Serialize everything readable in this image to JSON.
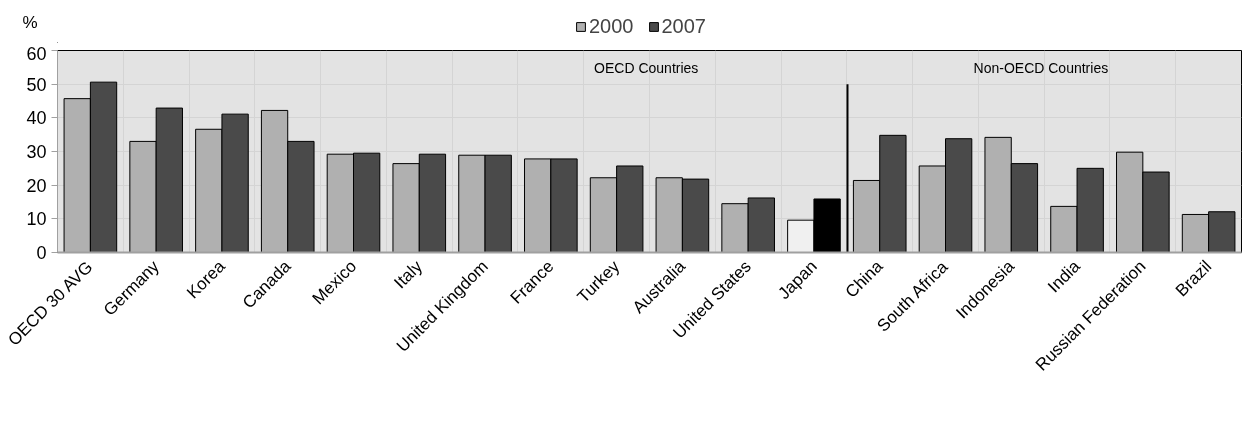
{
  "chart_data": {
    "type": "bar",
    "ylabel": "%",
    "categories": [
      "OECD 30 AVG",
      "Germany",
      "Korea",
      "Canada",
      "Mexico",
      "Italy",
      "United Kingdom",
      "France",
      "Turkey",
      "Australia",
      "United States",
      "Japan",
      "China",
      "South Africa",
      "Indonesia",
      "India",
      "Russian Federation",
      "Brazil"
    ],
    "series": [
      {
        "name": "2000",
        "color": "#b0b0b0",
        "colors": [
          "#b0b0b0",
          "#b0b0b0",
          "#b0b0b0",
          "#b0b0b0",
          "#b0b0b0",
          "#b0b0b0",
          "#b0b0b0",
          "#b0b0b0",
          "#b0b0b0",
          "#b0b0b0",
          "#b0b0b0",
          "#f0f0f0",
          "#b0b0b0",
          "#b0b0b0",
          "#b0b0b0",
          "#b0b0b0",
          "#b0b0b0",
          "#b0b0b0"
        ],
        "values": [
          45.7,
          33.0,
          36.6,
          42.2,
          29.2,
          26.4,
          28.9,
          27.8,
          22.2,
          22.2,
          14.5,
          9.6,
          21.4,
          25.7,
          34.2,
          13.7,
          29.8,
          11.3
        ]
      },
      {
        "name": "2007",
        "color": "#4a4a4a",
        "colors": [
          "#4a4a4a",
          "#4a4a4a",
          "#4a4a4a",
          "#4a4a4a",
          "#4a4a4a",
          "#4a4a4a",
          "#4a4a4a",
          "#4a4a4a",
          "#4a4a4a",
          "#4a4a4a",
          "#4a4a4a",
          "#000000",
          "#4a4a4a",
          "#4a4a4a",
          "#4a4a4a",
          "#4a4a4a",
          "#4a4a4a",
          "#4a4a4a"
        ],
        "values": [
          50.6,
          42.9,
          41.1,
          33.0,
          29.5,
          29.2,
          28.9,
          27.8,
          25.7,
          21.8,
          16.2,
          15.9,
          34.8,
          33.8,
          26.4,
          25.0,
          23.9,
          12.1
        ]
      }
    ],
    "ylim": [
      0,
      60
    ],
    "yticks": [
      0,
      10,
      20,
      30,
      40,
      50,
      60
    ],
    "grid": true,
    "legend": "top",
    "ref_lines": [
      {
        "axis": "x",
        "value": "China",
        "color": "#000000"
      }
    ],
    "annotations": [
      "OECD Countries",
      "Non-OECD Countries"
    ]
  }
}
